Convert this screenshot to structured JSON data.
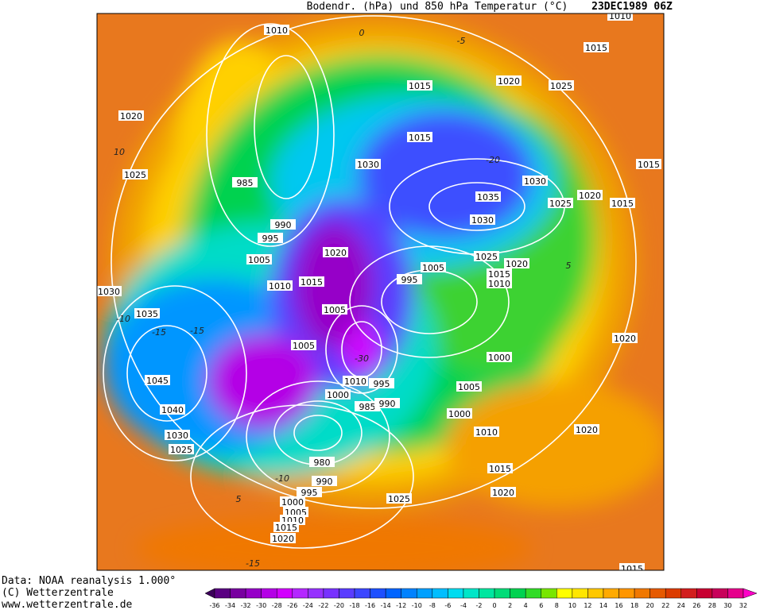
{
  "header": {
    "title": "Bodendr. (hPa) und 850 hPa Temperatur (°C)",
    "date": "23DEC1989 06Z"
  },
  "footer": [
    "Data: NOAA reanalysis 1.000°",
    "(C) Wetterzentrale",
    "www.wetterzentrale.de"
  ],
  "colorbar": {
    "labels": [
      -36,
      -34,
      -32,
      -30,
      -28,
      -26,
      -24,
      -22,
      -20,
      -18,
      -16,
      -14,
      -12,
      -10,
      -8,
      -6,
      -4,
      -2,
      0,
      2,
      4,
      6,
      8,
      10,
      12,
      14,
      16,
      18,
      20,
      22,
      24,
      26,
      28,
      30,
      32
    ],
    "colors": [
      "#3c005a",
      "#5a0082",
      "#7800a0",
      "#9600c8",
      "#b400e6",
      "#d200ff",
      "#b428ff",
      "#9632ff",
      "#7832ff",
      "#5a3cff",
      "#3c46ff",
      "#1e50ff",
      "#0064ff",
      "#0082ff",
      "#00a0ff",
      "#00beff",
      "#00dcf0",
      "#00e6c8",
      "#00e6a0",
      "#00dc78",
      "#00d250",
      "#32dc28",
      "#78e600",
      "#ffff00",
      "#ffe600",
      "#ffc800",
      "#ffaa00",
      "#ff9600",
      "#f07800",
      "#e65a00",
      "#dc3c00",
      "#d21e1e",
      "#c80032",
      "#c8005a",
      "#e6008c",
      "#ff00c8"
    ]
  },
  "isobar_labels": [
    1010,
    1015,
    1020,
    1025,
    985,
    1015,
    1020,
    1025,
    1015,
    1030,
    1035,
    1030,
    1030,
    1025,
    1020,
    1015,
    1015,
    990,
    995,
    1005,
    1020,
    1010,
    1015,
    1005,
    995,
    1025,
    1020,
    1015,
    1010,
    1030,
    1035,
    1005,
    1005,
    1010,
    995,
    1000,
    985,
    990,
    1000,
    1005,
    1000,
    1010,
    1045,
    1040,
    1030,
    1025,
    980,
    990,
    995,
    1000,
    1005,
    1010,
    1015,
    1020,
    1025,
    1015,
    1020,
    1020,
    1020,
    1015,
    1010
  ],
  "isotherm_labels": [
    0,
    -5,
    10,
    -10,
    -15,
    5,
    -15,
    -10,
    5,
    -20,
    -30,
    -15
  ]
}
